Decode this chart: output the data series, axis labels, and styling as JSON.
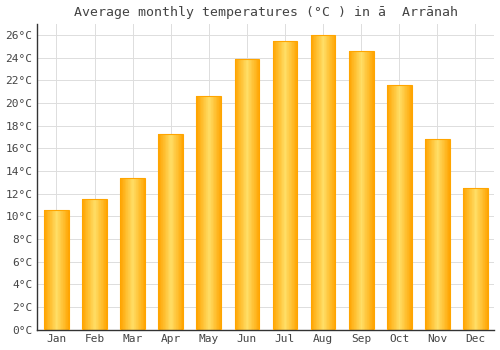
{
  "title": "Average monthly temperatures (°C ) in ā  Arrānah",
  "months": [
    "Jan",
    "Feb",
    "Mar",
    "Apr",
    "May",
    "Jun",
    "Jul",
    "Aug",
    "Sep",
    "Oct",
    "Nov",
    "Dec"
  ],
  "values": [
    10.6,
    11.5,
    13.4,
    17.3,
    20.6,
    23.9,
    25.5,
    26.0,
    24.6,
    21.6,
    16.8,
    12.5
  ],
  "bar_color_center": "#FFD966",
  "bar_color_edge": "#FFA500",
  "background_color": "#FFFFFF",
  "grid_color": "#DDDDDD",
  "text_color": "#444444",
  "spine_color": "#333333",
  "ylim": [
    0,
    27
  ],
  "ytick_step": 2,
  "title_fontsize": 9.5,
  "tick_fontsize": 8,
  "font_family": "monospace"
}
